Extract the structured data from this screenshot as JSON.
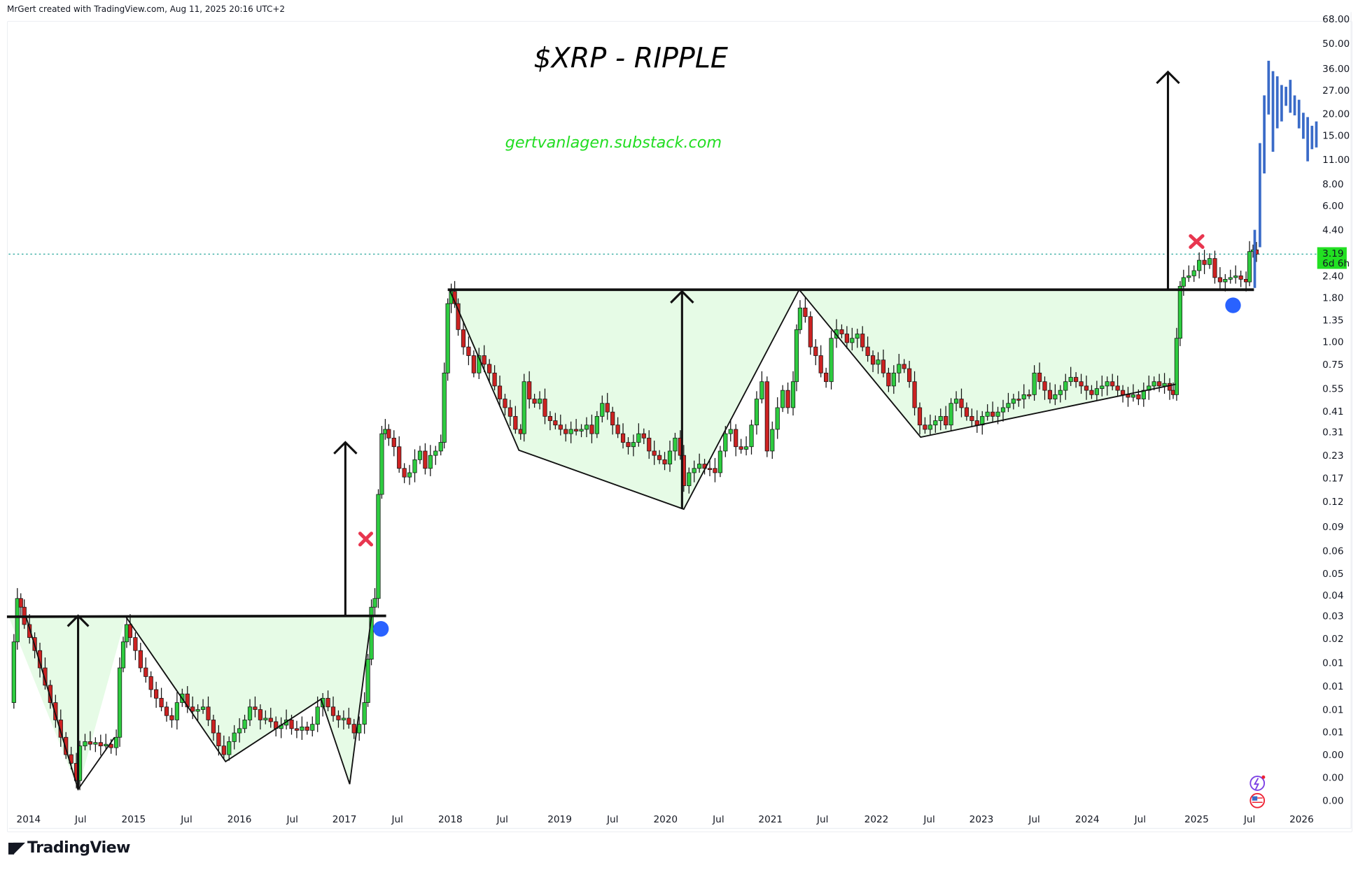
{
  "header": {
    "credit": "MrGert created with TradingView.com, Aug 11, 2025 20:16 UTC+2"
  },
  "annotations": {
    "title": "$XRP - RIPPLE",
    "url": "gertvanlagen.substack.com"
  },
  "price_label": {
    "value": "3.19",
    "countdown": "6d 6h",
    "color": "#22e022"
  },
  "footer": {
    "brand": "TradingView"
  },
  "colors": {
    "up_candle": "#2ecc40",
    "down_candle": "#cc2222",
    "pattern_fill": "#e6fbe6",
    "projection": "#3a6bc8",
    "x_marker": "#e8364f",
    "dot_marker": "#2962ff",
    "price_line": "#26a69a"
  },
  "chart_data": {
    "type": "candlestick",
    "title": "$XRP - RIPPLE",
    "subtitle": "gertvanlagen.substack.com",
    "symbol": "XRP",
    "timeframe": "weekly",
    "scale": "logarithmic",
    "current_price": 3.19,
    "bar_countdown": "6d 6h",
    "x_ticks": [
      "2014",
      "Jul",
      "2015",
      "Jul",
      "2016",
      "Jul",
      "2017",
      "Jul",
      "2018",
      "Jul",
      "2019",
      "Jul",
      "2020",
      "Jul",
      "2021",
      "Jul",
      "2022",
      "Jul",
      "2023",
      "Jul",
      "2024",
      "Jul",
      "2025",
      "Jul",
      "2026"
    ],
    "y_ticks": [
      "68.00",
      "50.00",
      "36.00",
      "27.00",
      "20.00",
      "15.00",
      "11.00",
      "8.00",
      "6.00",
      "4.40",
      "2.40",
      "1.80",
      "1.35",
      "1.00",
      "0.75",
      "0.55",
      "0.41",
      "0.31",
      "0.23",
      "0.17",
      "0.12",
      "0.09",
      "0.06",
      "0.05",
      "0.04",
      "0.03",
      "0.02",
      "0.01",
      "0.01",
      "0.01",
      "0.01",
      "0.00",
      "0.00",
      "0.00"
    ],
    "ylim": [
      0.003,
      68
    ],
    "grid": false,
    "patterns": [
      {
        "name": "Cup 2014-2017",
        "neckline": 0.03,
        "start": "2014",
        "breakout": "2017-Q1",
        "low": 0.003
      },
      {
        "name": "Cup 2018-2024",
        "neckline": 1.9,
        "start": "2018-Jan",
        "breakout": "2024-Nov",
        "lows": [
          0.24,
          0.11,
          0.29
        ]
      }
    ],
    "markers": [
      {
        "type": "x",
        "date": "2017-Mar",
        "price": 0.07,
        "color": "red"
      },
      {
        "type": "dot",
        "date": "2017-Apr",
        "price": 0.025,
        "color": "blue"
      },
      {
        "type": "x",
        "date": "2025-Jan",
        "price": 3.4,
        "color": "red"
      },
      {
        "type": "dot",
        "date": "2025-May",
        "price": 1.6,
        "color": "blue"
      }
    ],
    "projection": {
      "from": "2025-Jul",
      "to": "2026-Jan",
      "target_range": [
        11,
        40
      ],
      "peak": 40
    },
    "key_levels": {
      "resistance_1": 0.03,
      "resistance_2": 1.9
    }
  }
}
